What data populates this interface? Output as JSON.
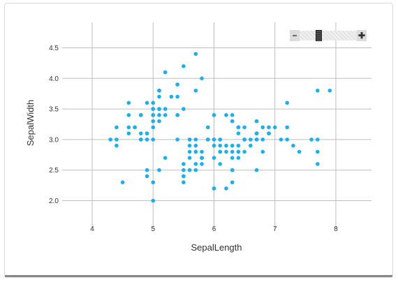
{
  "chart_data": {
    "type": "scatter",
    "title": "",
    "xlabel": "SepalLength",
    "ylabel": "SepalWidth",
    "xlim": [
      3.5,
      8.6
    ],
    "ylim": [
      1.6,
      4.9
    ],
    "xticks": [
      4,
      5,
      6,
      7,
      8
    ],
    "yticks": [
      2.0,
      2.5,
      3.0,
      3.5,
      4.0,
      4.5
    ],
    "ytick_labels": [
      "2.0",
      "2.5",
      "3.0",
      "3.5",
      "4.0",
      "4.5"
    ],
    "grid": true,
    "marker_color": "#1ab0ef",
    "points": [
      [
        5.1,
        3.5
      ],
      [
        4.9,
        3.0
      ],
      [
        4.7,
        3.2
      ],
      [
        4.6,
        3.1
      ],
      [
        5.0,
        3.6
      ],
      [
        5.4,
        3.9
      ],
      [
        4.6,
        3.4
      ],
      [
        5.0,
        3.4
      ],
      [
        4.4,
        2.9
      ],
      [
        4.9,
        3.1
      ],
      [
        5.4,
        3.7
      ],
      [
        4.8,
        3.4
      ],
      [
        4.8,
        3.0
      ],
      [
        4.3,
        3.0
      ],
      [
        5.8,
        4.0
      ],
      [
        5.7,
        4.4
      ],
      [
        5.4,
        3.9
      ],
      [
        5.1,
        3.5
      ],
      [
        5.7,
        3.8
      ],
      [
        5.1,
        3.8
      ],
      [
        5.4,
        3.4
      ],
      [
        5.1,
        3.7
      ],
      [
        4.6,
        3.6
      ],
      [
        5.1,
        3.3
      ],
      [
        4.8,
        3.4
      ],
      [
        5.0,
        3.0
      ],
      [
        5.0,
        3.4
      ],
      [
        5.2,
        3.5
      ],
      [
        5.2,
        3.4
      ],
      [
        4.7,
        3.2
      ],
      [
        4.8,
        3.1
      ],
      [
        5.4,
        3.4
      ],
      [
        5.2,
        4.1
      ],
      [
        5.5,
        4.2
      ],
      [
        4.9,
        3.1
      ],
      [
        5.0,
        3.2
      ],
      [
        5.5,
        3.5
      ],
      [
        4.9,
        3.6
      ],
      [
        4.4,
        3.0
      ],
      [
        5.1,
        3.4
      ],
      [
        5.0,
        3.5
      ],
      [
        4.5,
        2.3
      ],
      [
        4.4,
        3.2
      ],
      [
        5.0,
        3.5
      ],
      [
        5.1,
        3.8
      ],
      [
        4.8,
        3.0
      ],
      [
        5.1,
        3.8
      ],
      [
        4.6,
        3.2
      ],
      [
        5.3,
        3.7
      ],
      [
        5.0,
        3.3
      ],
      [
        7.0,
        3.2
      ],
      [
        6.4,
        3.2
      ],
      [
        6.9,
        3.1
      ],
      [
        5.5,
        2.3
      ],
      [
        6.5,
        2.8
      ],
      [
        5.7,
        2.8
      ],
      [
        6.3,
        3.3
      ],
      [
        4.9,
        2.4
      ],
      [
        6.6,
        2.9
      ],
      [
        5.2,
        2.7
      ],
      [
        5.0,
        2.0
      ],
      [
        5.9,
        3.0
      ],
      [
        6.0,
        2.2
      ],
      [
        6.1,
        2.9
      ],
      [
        5.6,
        2.9
      ],
      [
        6.7,
        3.1
      ],
      [
        5.6,
        3.0
      ],
      [
        5.8,
        2.7
      ],
      [
        6.2,
        2.2
      ],
      [
        5.6,
        2.5
      ],
      [
        5.9,
        3.2
      ],
      [
        6.1,
        2.8
      ],
      [
        6.3,
        2.5
      ],
      [
        6.1,
        2.8
      ],
      [
        6.4,
        2.9
      ],
      [
        6.6,
        3.0
      ],
      [
        6.8,
        2.8
      ],
      [
        6.7,
        3.0
      ],
      [
        6.0,
        2.9
      ],
      [
        5.7,
        2.6
      ],
      [
        5.5,
        2.4
      ],
      [
        5.5,
        2.4
      ],
      [
        5.8,
        2.7
      ],
      [
        6.0,
        2.7
      ],
      [
        5.4,
        3.0
      ],
      [
        6.0,
        3.4
      ],
      [
        6.7,
        3.1
      ],
      [
        6.3,
        2.3
      ],
      [
        5.6,
        3.0
      ],
      [
        5.5,
        2.5
      ],
      [
        5.5,
        2.6
      ],
      [
        6.1,
        3.0
      ],
      [
        5.8,
        2.6
      ],
      [
        5.0,
        2.3
      ],
      [
        5.6,
        2.7
      ],
      [
        5.7,
        3.0
      ],
      [
        5.7,
        2.9
      ],
      [
        6.2,
        2.9
      ],
      [
        5.1,
        2.5
      ],
      [
        5.7,
        2.8
      ],
      [
        6.3,
        3.3
      ],
      [
        5.8,
        2.7
      ],
      [
        7.1,
        3.0
      ],
      [
        6.3,
        2.9
      ],
      [
        6.5,
        3.0
      ],
      [
        7.6,
        3.0
      ],
      [
        4.9,
        2.5
      ],
      [
        7.3,
        2.9
      ],
      [
        6.7,
        2.5
      ],
      [
        7.2,
        3.6
      ],
      [
        6.5,
        3.2
      ],
      [
        6.4,
        2.7
      ],
      [
        6.8,
        3.0
      ],
      [
        5.7,
        2.5
      ],
      [
        5.8,
        2.8
      ],
      [
        6.4,
        3.2
      ],
      [
        6.5,
        3.0
      ],
      [
        7.7,
        3.8
      ],
      [
        7.7,
        2.6
      ],
      [
        6.0,
        2.2
      ],
      [
        6.9,
        3.2
      ],
      [
        5.6,
        2.8
      ],
      [
        7.7,
        2.8
      ],
      [
        6.3,
        2.7
      ],
      [
        6.7,
        3.3
      ],
      [
        7.2,
        3.2
      ],
      [
        6.2,
        2.8
      ],
      [
        6.1,
        3.0
      ],
      [
        6.4,
        2.8
      ],
      [
        7.2,
        3.0
      ],
      [
        7.4,
        2.8
      ],
      [
        7.9,
        3.8
      ],
      [
        6.4,
        2.8
      ],
      [
        6.3,
        2.8
      ],
      [
        6.1,
        2.6
      ],
      [
        7.7,
        3.0
      ],
      [
        6.3,
        3.4
      ],
      [
        6.4,
        3.1
      ],
      [
        6.0,
        3.0
      ],
      [
        6.9,
        3.1
      ],
      [
        6.7,
        3.1
      ],
      [
        6.9,
        3.1
      ],
      [
        5.8,
        2.7
      ],
      [
        6.8,
        3.2
      ],
      [
        6.7,
        3.3
      ],
      [
        6.7,
        3.0
      ],
      [
        6.3,
        2.5
      ],
      [
        6.5,
        3.0
      ],
      [
        6.2,
        3.4
      ],
      [
        5.9,
        3.0
      ]
    ]
  },
  "zoom_control": {
    "minus_label": "−",
    "plus_label": "✚"
  }
}
